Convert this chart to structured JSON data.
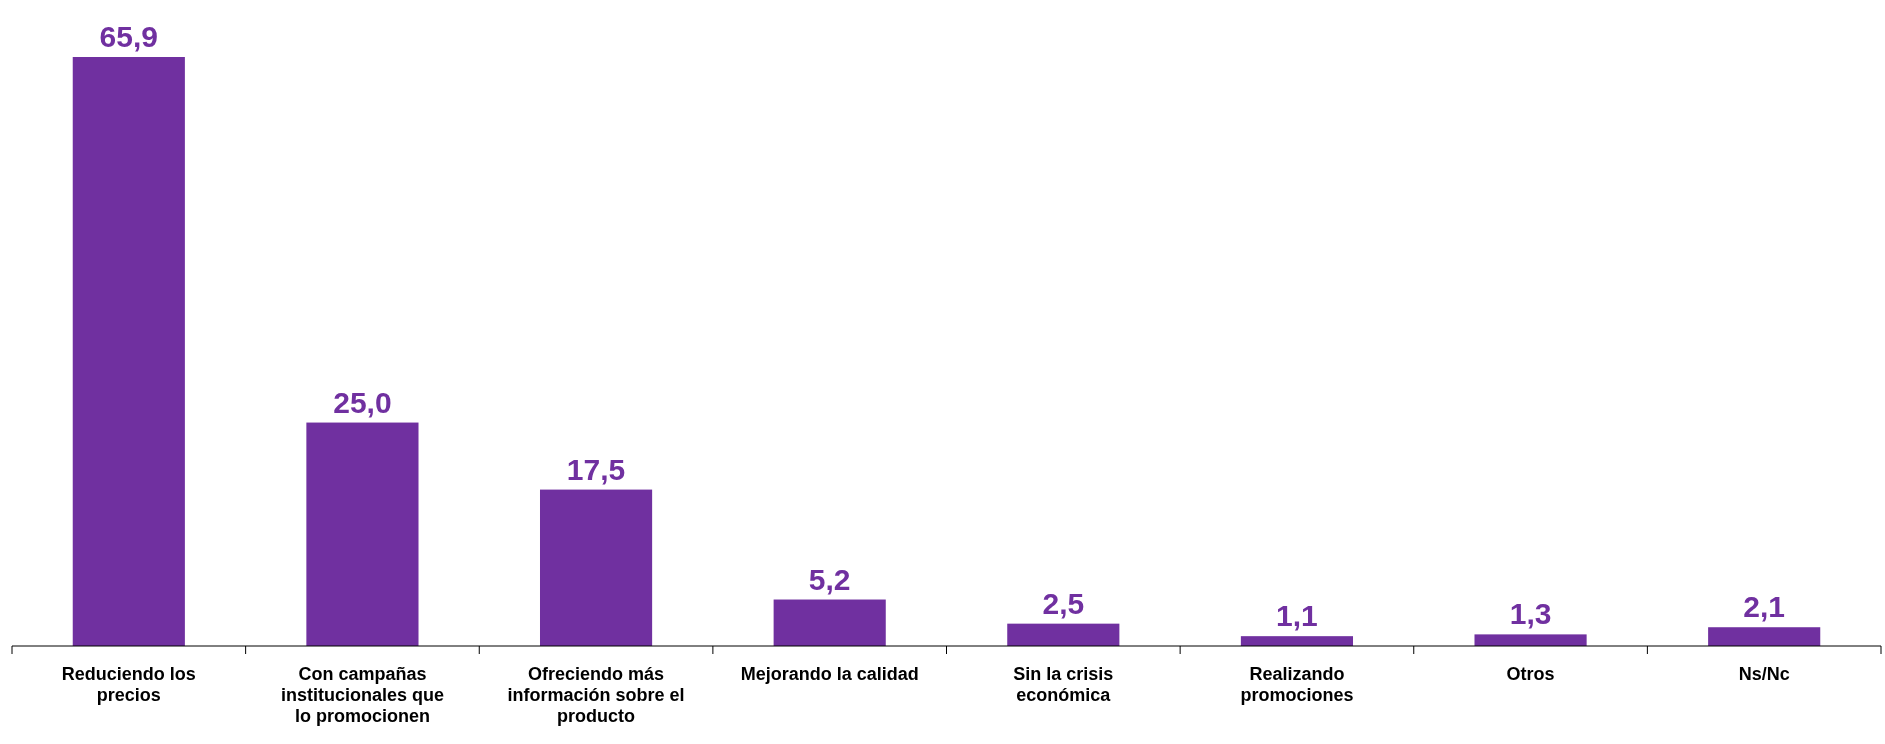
{
  "chart_data": {
    "type": "bar",
    "categories": [
      "Reduciendo los precios",
      "Con campañas institucionales que lo promocionen",
      "Ofreciendo más información sobre el producto",
      "Mejorando la calidad",
      "Sin la crisis económica",
      "Realizando promociones",
      "Otros",
      "Ns/Nc"
    ],
    "values": [
      65.9,
      25.0,
      17.5,
      5.2,
      2.5,
      1.1,
      1.3,
      2.1
    ],
    "value_labels": [
      "65,9",
      "25,0",
      "17,5",
      "5,2",
      "2,5",
      "1,1",
      "1,3",
      "2,1"
    ],
    "color": "#7030a0"
  }
}
